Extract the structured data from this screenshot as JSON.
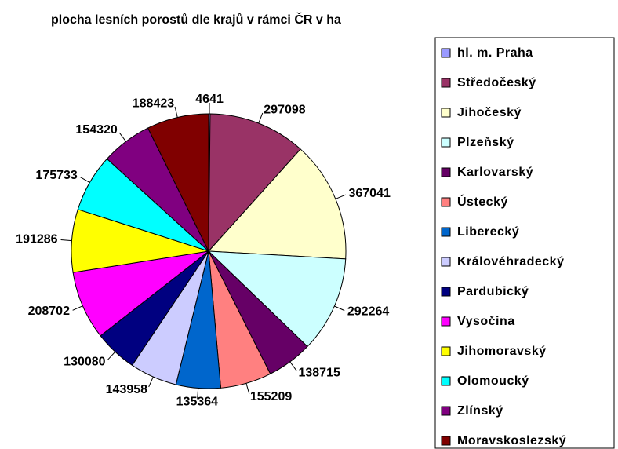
{
  "chart_data": {
    "type": "pie",
    "title": "plocha  lesních porostů dle krajů v rámci ČR v ha",
    "categories": [
      "hl. m. Praha",
      "Středočeský",
      "Jihočeský",
      "Plzeňský",
      "Karlovarský",
      "Ústecký",
      "Liberecký",
      "Královéhradecký",
      "Pardubický",
      "Vysočina",
      "Jihomoravský",
      "Olomoucký",
      "Zlínský",
      "Moravskoslezský"
    ],
    "values": [
      4641,
      297098,
      367041,
      292264,
      138715,
      155209,
      135364,
      143958,
      130080,
      208702,
      191286,
      175733,
      154320,
      188423
    ],
    "colors": [
      "#9999ff",
      "#993366",
      "#ffffcc",
      "#ccffff",
      "#660066",
      "#ff8080",
      "#0066cc",
      "#ccccff",
      "#000080",
      "#ff00ff",
      "#ffff00",
      "#00ffff",
      "#800080",
      "#800000"
    ],
    "legend": "right"
  }
}
